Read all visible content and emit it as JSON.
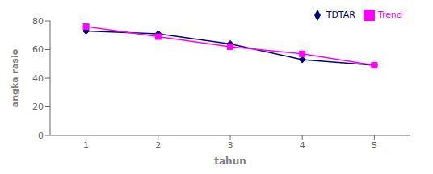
{
  "chart_data": {
    "type": "line",
    "x": [
      1,
      2,
      3,
      4,
      5
    ],
    "series": [
      {
        "name": "TDTAR",
        "color": "#000080",
        "marker": "diamond",
        "values": [
          73,
          71,
          64,
          53,
          49
        ]
      },
      {
        "name": "Trend",
        "color": "#FF00FF",
        "marker": "square",
        "values": [
          76,
          69,
          62,
          57,
          49
        ]
      }
    ],
    "xlabel": "tahun",
    "ylabel": "angka rasio",
    "xlim": [
      0.5,
      5.5
    ],
    "xticks": [
      1,
      2,
      3,
      4,
      5
    ],
    "ylim": [
      0,
      80
    ],
    "yticks": [
      0,
      20,
      40,
      60,
      80
    ],
    "legend": "upper right",
    "grid": false
  }
}
